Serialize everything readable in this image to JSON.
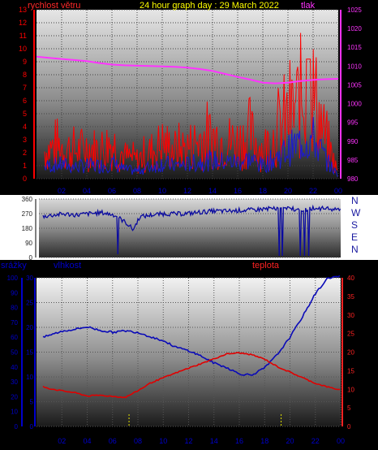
{
  "colors": {
    "wind": "#ff0000",
    "gust_overlay": "#1a1ad0",
    "pressure": "#ff33ff",
    "direction": "#0a0aa0",
    "humidity": "#0a0ab8",
    "temperature": "#e00000",
    "rain": "#e0e000",
    "title": "#ffff00",
    "axis_red": "#ff0000",
    "axis_blue": "#0000cc",
    "axis_magenta": "#ff33ff"
  },
  "header": {
    "wind_label": "rychlost větru",
    "title": "24 hour graph day : 29 March 2022",
    "pressure_label": "tlak"
  },
  "middle": {
    "compass": [
      "N",
      "W",
      "S",
      "E",
      "N"
    ]
  },
  "lower": {
    "rain_label": "srážky",
    "humidity_label": "vlhkost",
    "temperature_label": "teplota"
  },
  "chart_data": [
    {
      "type": "line",
      "name": "wind-pressure",
      "x_ticks": [
        "02",
        "04",
        "06",
        "08",
        "10",
        "12",
        "14",
        "16",
        "18",
        "20",
        "22",
        "00"
      ],
      "y_left_ticks": [
        "0",
        "1",
        "2",
        "3",
        "4",
        "5",
        "6",
        "7",
        "8",
        "9",
        "10",
        "11",
        "12",
        "13"
      ],
      "y_right_ticks": [
        "980",
        "985",
        "990",
        "995",
        "1000",
        "1005",
        "1010",
        "1015",
        "1020",
        "1025"
      ],
      "ylim_left": [
        0,
        13
      ],
      "ylim_right": [
        980,
        1025
      ],
      "pressure": {
        "x": [
          0,
          1,
          2,
          3,
          4,
          5,
          6,
          7,
          8,
          9,
          10,
          11,
          12,
          13,
          14,
          15,
          16,
          17,
          18,
          19,
          20,
          21,
          22,
          23,
          24
        ],
        "y": [
          1012.5,
          1012.2,
          1011.9,
          1011.6,
          1011.3,
          1010.8,
          1010.4,
          1010.2,
          1010.1,
          1010.0,
          1009.9,
          1009.8,
          1009.6,
          1009.2,
          1008.7,
          1007.9,
          1007.1,
          1006.4,
          1005.6,
          1005.4,
          1005.6,
          1006.0,
          1006.3,
          1006.5,
          1006.6
        ]
      },
      "wind": {
        "x": [
          0,
          1,
          2,
          3,
          4,
          5,
          6,
          7,
          8,
          9,
          10,
          11,
          12,
          13,
          14,
          15,
          16,
          17,
          18,
          19,
          20,
          21,
          22,
          23,
          24
        ],
        "y": [
          1.8,
          2.3,
          2.5,
          2.1,
          2.4,
          2.2,
          2.8,
          1.7,
          1.4,
          2.0,
          2.7,
          2.2,
          2.4,
          3.0,
          3.2,
          2.9,
          2.8,
          3.3,
          2.2,
          3.4,
          4.6,
          5.9,
          6.5,
          3.0,
          0.4
        ]
      },
      "wind_average": {
        "x": [
          0,
          1,
          2,
          3,
          4,
          5,
          6,
          7,
          8,
          9,
          10,
          11,
          12,
          13,
          14,
          15,
          16,
          17,
          18,
          19,
          20,
          21,
          22,
          23,
          24
        ],
        "y": [
          0.8,
          1.0,
          1.1,
          0.9,
          1.0,
          1.0,
          1.2,
          0.7,
          0.6,
          0.9,
          1.2,
          1.0,
          1.1,
          1.3,
          1.4,
          1.3,
          1.3,
          1.5,
          1.0,
          1.6,
          2.2,
          2.8,
          3.1,
          1.5,
          0.2
        ]
      }
    },
    {
      "type": "scatter",
      "name": "wind-direction",
      "x_ticks": [
        "02",
        "04",
        "06",
        "08",
        "10",
        "12",
        "14",
        "16",
        "18",
        "20",
        "22",
        "00"
      ],
      "y_ticks": [
        "0",
        "90",
        "180",
        "270",
        "360"
      ],
      "ylim": [
        0,
        360
      ],
      "x": [
        0,
        1,
        2,
        3,
        4,
        5,
        6,
        7,
        7.5,
        8,
        9,
        10,
        11,
        12,
        13,
        14,
        15,
        16,
        17,
        18,
        19,
        20,
        21,
        22,
        23,
        24
      ],
      "y": [
        250,
        260,
        268,
        262,
        270,
        276,
        262,
        210,
        170,
        250,
        262,
        270,
        268,
        272,
        280,
        286,
        285,
        290,
        292,
        300,
        300,
        302,
        295,
        305,
        298,
        300
      ]
    },
    {
      "type": "line",
      "name": "humidity-temperature-rain",
      "x_ticks": [
        "02",
        "04",
        "06",
        "08",
        "10",
        "12",
        "14",
        "16",
        "18",
        "20",
        "22",
        "00"
      ],
      "y_rain_ticks": [
        "0",
        "10",
        "20",
        "30",
        "40",
        "50",
        "60",
        "70",
        "80",
        "90",
        "100"
      ],
      "y_humidity_ticks": [
        "0",
        "5",
        "10",
        "15",
        "20",
        "25",
        "30"
      ],
      "y_temperature_ticks": [
        "0",
        "5",
        "10",
        "15",
        "20",
        "25",
        "30",
        "35",
        "40"
      ],
      "ylim_rain": [
        0,
        100
      ],
      "ylim_humidity": [
        0,
        30
      ],
      "ylim_temperature": [
        0,
        40
      ],
      "humidity": {
        "x": [
          0,
          1,
          2,
          3,
          4,
          5,
          6,
          7,
          8,
          9,
          10,
          11,
          12,
          13,
          14,
          15,
          16,
          17,
          18,
          19,
          20,
          21,
          22,
          23,
          24
        ],
        "y": [
          17.5,
          18.4,
          19.2,
          19.6,
          20.1,
          19.4,
          19.0,
          19.3,
          19.0,
          18.1,
          17.3,
          16.0,
          15.3,
          14.2,
          12.8,
          11.9,
          10.6,
          10.4,
          11.8,
          14.5,
          18.0,
          22.2,
          26.8,
          30.0,
          30.3
        ]
      },
      "temperature": {
        "x": [
          0,
          1,
          2,
          3,
          4,
          5,
          6,
          7,
          8,
          9,
          10,
          11,
          12,
          13,
          14,
          15,
          16,
          17,
          18,
          19,
          20,
          21,
          22,
          23,
          24
        ],
        "y": [
          11.3,
          10.2,
          9.6,
          9.1,
          8.2,
          8.4,
          8.1,
          7.8,
          9.6,
          11.7,
          13.1,
          14.4,
          15.7,
          16.9,
          18.2,
          19.5,
          19.8,
          19.3,
          18.1,
          16.1,
          14.6,
          13.1,
          11.6,
          10.6,
          9.8
        ]
      },
      "rain_markers": [
        7.3,
        19.3
      ]
    }
  ]
}
